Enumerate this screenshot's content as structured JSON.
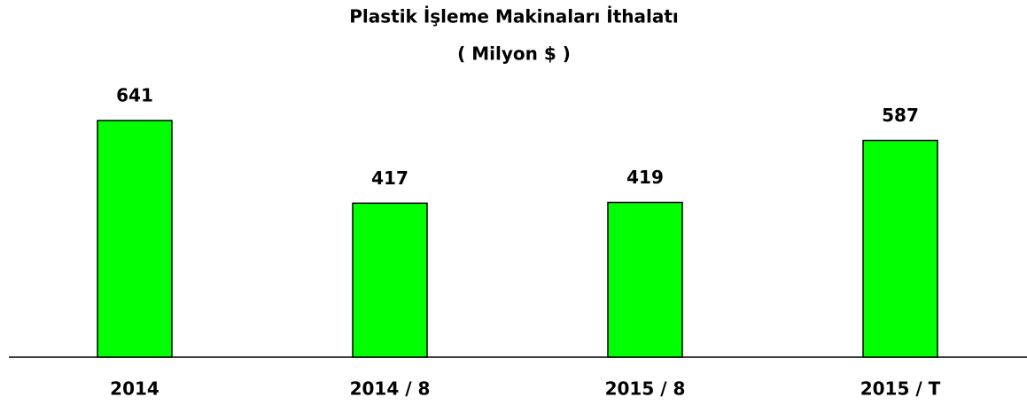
{
  "chart_data": {
    "type": "bar",
    "title": "Plastik İşleme Makinaları İthalatı",
    "subtitle": "( Milyon $ )",
    "categories": [
      "2014",
      "2014 / 8",
      "2015 / 8",
      "2015 / T"
    ],
    "values": [
      641,
      417,
      419,
      587
    ],
    "color": "#00ff00"
  }
}
